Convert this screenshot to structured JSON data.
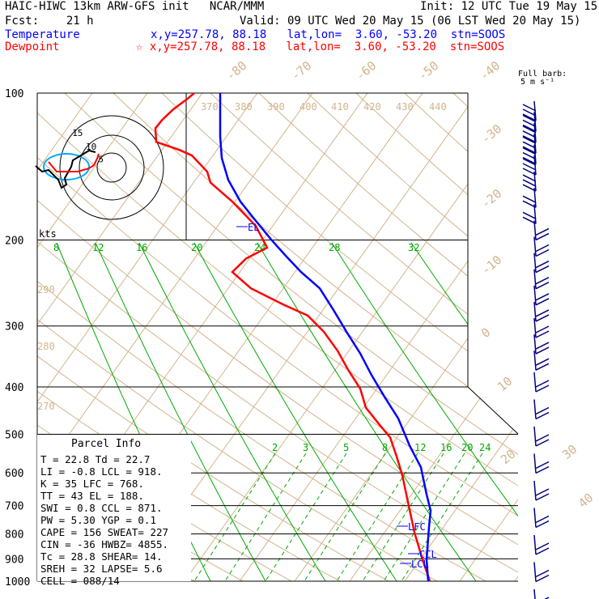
{
  "header": {
    "line1_left": "HAIC-HIWC 13km ARW-GFS init   NCAR/MMM",
    "line1_right": "Init: 12 UTC Tue 19 May 15",
    "line2_left": "Fcst:    21 h",
    "line2_right": "Valid: 09 UTC Wed 20 May 15 (06 LST Wed 20 May 15)",
    "temp_label": "Temperature",
    "temp_info": "x,y=257.78, 88.18   lat,lon=  3.60, -53.20  stn=SOOS",
    "dew_label": "Dewpoint",
    "dew_info": "☆ x,y=257.78, 88.18   lat,lon=  3.60, -53.20  stn=SOOS",
    "barb_legend_line1": "Full barb:",
    "barb_legend_line2": "5 m s⁻¹"
  },
  "colors": {
    "temperature": "#ff0000",
    "dewpoint_or_parcel": "#0000ff",
    "isotherm": "#d2b48c",
    "dry_adiabat": "#d2b48c",
    "moist_adiabat": "#00aa00",
    "mixing_ratio": "#00aa00",
    "wind_barb": "#000080"
  },
  "parcel_info": {
    "title": "Parcel Info",
    "rows": [
      "T  =    22.8  Td =  22.7",
      "LI =    -0.8  LCL =  918.",
      "K  =      35  LFC =  768.",
      "TT =      43  EL  =  188.",
      "SWI =    0.8  CCL =  871.",
      "PW =    5.30  YGP =   0.1",
      "CAPE =   156  SWEAT=  227",
      "CIN =    -36  HWBZ= 4855.",
      "Tc =    28.8  SHEAR=  14.",
      "SREH =    32  LAPSE=  5.6",
      "CELL = 088/14"
    ]
  },
  "chart_data": {
    "type": "line",
    "title": "",
    "ylabel": "",
    "xlabel": "",
    "pressure_levels": [
      100,
      200,
      300,
      400,
      500,
      600,
      700,
      800,
      900,
      1000
    ],
    "isotherm_labels": [
      "-80",
      "-70",
      "-60",
      "-50",
      "-40",
      "-30",
      "-20",
      "-10",
      "0",
      "10",
      "20",
      "30",
      "40"
    ],
    "theta_labels": [
      "370",
      "380",
      "390",
      "400",
      "410",
      "420",
      "430",
      "440",
      "290",
      "280",
      "270"
    ],
    "moist_adiabat_labels": [
      "8",
      "12",
      "16",
      "20",
      "24",
      "28",
      "32"
    ],
    "mixing_ratio_labels": [
      "2",
      "3",
      "5",
      "8",
      "12",
      "16",
      "20",
      "24"
    ],
    "level_labels": {
      "el": "EL",
      "lfc": "LFC",
      "ccl": "CCL",
      "lcl": "LCL"
    },
    "hodograph": {
      "units": "kts",
      "ring_labels": [
        "15",
        "10",
        "5"
      ]
    },
    "series": [
      {
        "name": "Temperature",
        "profile": [
          [
            100,
            240
          ],
          [
            110,
            232
          ],
          [
            130,
            214
          ],
          [
            150,
            200
          ],
          [
            165,
            192
          ],
          [
            190,
            193
          ],
          [
            205,
            222
          ],
          [
            215,
            237
          ],
          [
            245,
            256
          ],
          [
            265,
            260
          ],
          [
            300,
            287
          ],
          [
            345,
            316
          ],
          [
            385,
            330
          ],
          [
            405,
            304
          ],
          [
            430,
            287
          ],
          [
            460,
            310
          ],
          [
            490,
            350
          ],
          [
            510,
            380
          ],
          [
            540,
            400
          ],
          [
            575,
            417
          ],
          [
            610,
            430
          ],
          [
            645,
            445
          ],
          [
            680,
            452
          ],
          [
            710,
            468
          ],
          [
            735,
            482
          ],
          [
            770,
            490
          ],
          [
            805,
            497
          ],
          [
            840,
            502
          ],
          [
            875,
            507
          ],
          [
            910,
            512
          ],
          [
            960,
            522
          ],
          [
            1000,
            531
          ]
        ]
      },
      {
        "name": "Dewpoint",
        "profile": [
          [
            100,
            272
          ],
          [
            140,
            272
          ],
          [
            180,
            272
          ],
          [
            220,
            274
          ],
          [
            260,
            282
          ],
          [
            300,
            297
          ],
          [
            330,
            313
          ],
          [
            370,
            335
          ],
          [
            400,
            353
          ],
          [
            430,
            372
          ],
          [
            460,
            395
          ],
          [
            500,
            412
          ],
          [
            540,
            428
          ],
          [
            580,
            445
          ],
          [
            620,
            459
          ],
          [
            660,
            475
          ],
          [
            700,
            492
          ],
          [
            750,
            506
          ],
          [
            790,
            520
          ],
          [
            840,
            527
          ],
          [
            870,
            532
          ],
          [
            900,
            530
          ],
          [
            960,
            527
          ],
          [
            1000,
            529
          ]
        ]
      }
    ],
    "wind_barbs_pressure": [
      100,
      120,
      140,
      160,
      180,
      200,
      230,
      260,
      290,
      320,
      350,
      380,
      410,
      440,
      470,
      500,
      530,
      560,
      600,
      650,
      700,
      750,
      800,
      850,
      900,
      950,
      1000
    ],
    "xlim": [
      -40,
      40
    ],
    "ylim": [
      1000,
      100
    ]
  }
}
